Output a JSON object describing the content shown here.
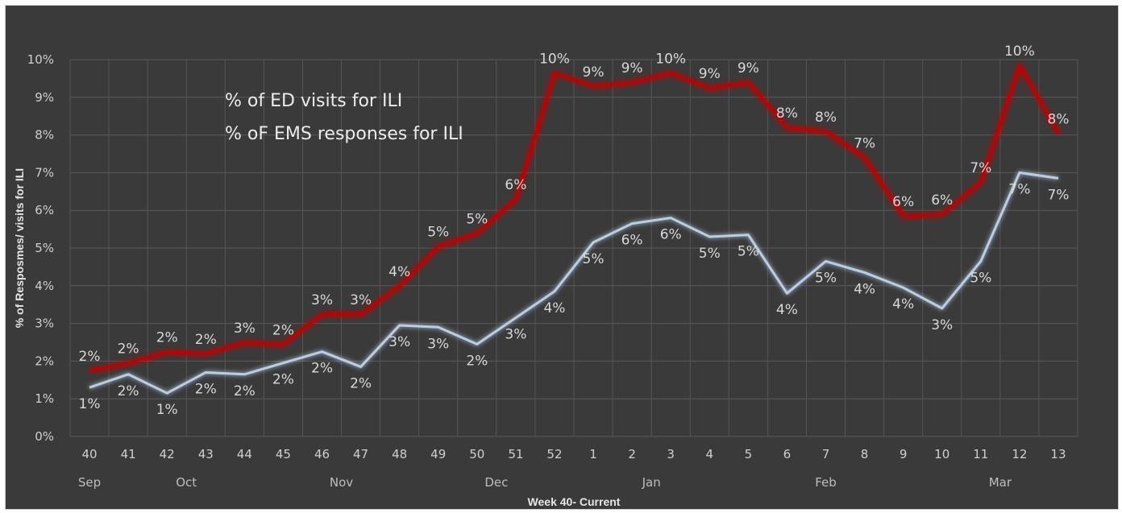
{
  "chart_data": {
    "type": "line",
    "xlabel": "Week 40- Current",
    "ylabel": "% of Resposmes/ visits for ILI",
    "ylim": [
      0,
      10
    ],
    "y_ticks": [
      "0%",
      "1%",
      "2%",
      "3%",
      "4%",
      "5%",
      "6%",
      "7%",
      "8%",
      "9%",
      "10%"
    ],
    "grid": true,
    "legend_position": "top-left",
    "categories": [
      "40",
      "41",
      "42",
      "43",
      "44",
      "45",
      "46",
      "47",
      "48",
      "49",
      "50",
      "51",
      "52",
      "1",
      "2",
      "3",
      "4",
      "5",
      "6",
      "7",
      "8",
      "9",
      "10",
      "11",
      "12",
      "13"
    ],
    "months": [
      {
        "label": "Sep",
        "at_index": 0
      },
      {
        "label": "Oct",
        "at_index": 2.5
      },
      {
        "label": "Nov",
        "at_index": 6.5
      },
      {
        "label": "Dec",
        "at_index": 10.5
      },
      {
        "label": "Jan",
        "at_index": 14.5
      },
      {
        "label": "Feb",
        "at_index": 19
      },
      {
        "label": "Mar",
        "at_index": 23.5
      }
    ],
    "series": [
      {
        "name": "% of ED visits for ILI",
        "color": "#c00000",
        "glow": "#ff3030",
        "values": [
          1.75,
          1.95,
          2.25,
          2.2,
          2.5,
          2.45,
          3.25,
          3.25,
          4.0,
          5.05,
          5.4,
          6.3,
          9.65,
          9.3,
          9.4,
          9.65,
          9.25,
          9.4,
          8.2,
          8.1,
          7.4,
          5.85,
          5.9,
          6.75,
          9.85,
          8.05
        ],
        "labels": [
          "2%",
          "2%",
          "2%",
          "2%",
          "3%",
          "2%",
          "3%",
          "3%",
          "4%",
          "5%",
          "5%",
          "6%",
          "10%",
          "9%",
          "9%",
          "10%",
          "9%",
          "9%",
          "8%",
          "8%",
          "7%",
          "6%",
          "6%",
          "7%",
          "10%",
          "8%"
        ]
      },
      {
        "name": "% oF EMS responses for ILI",
        "color": "#b8cde6",
        "glow": "#c8d8f0",
        "values": [
          1.3,
          1.65,
          1.15,
          1.7,
          1.65,
          1.95,
          2.25,
          1.85,
          2.95,
          2.9,
          2.45,
          3.15,
          3.85,
          5.15,
          5.65,
          5.8,
          5.3,
          5.35,
          3.8,
          4.65,
          4.35,
          3.95,
          3.4,
          4.65,
          7.0,
          6.85
        ],
        "labels": [
          "1%",
          "2%",
          "1%",
          "2%",
          "2%",
          "2%",
          "2%",
          "2%",
          "3%",
          "3%",
          "2%",
          "3%",
          "4%",
          "5%",
          "6%",
          "6%",
          "5%",
          "5%",
          "4%",
          "5%",
          "4%",
          "4%",
          "3%",
          "5%",
          "7%",
          "7%"
        ]
      }
    ]
  }
}
